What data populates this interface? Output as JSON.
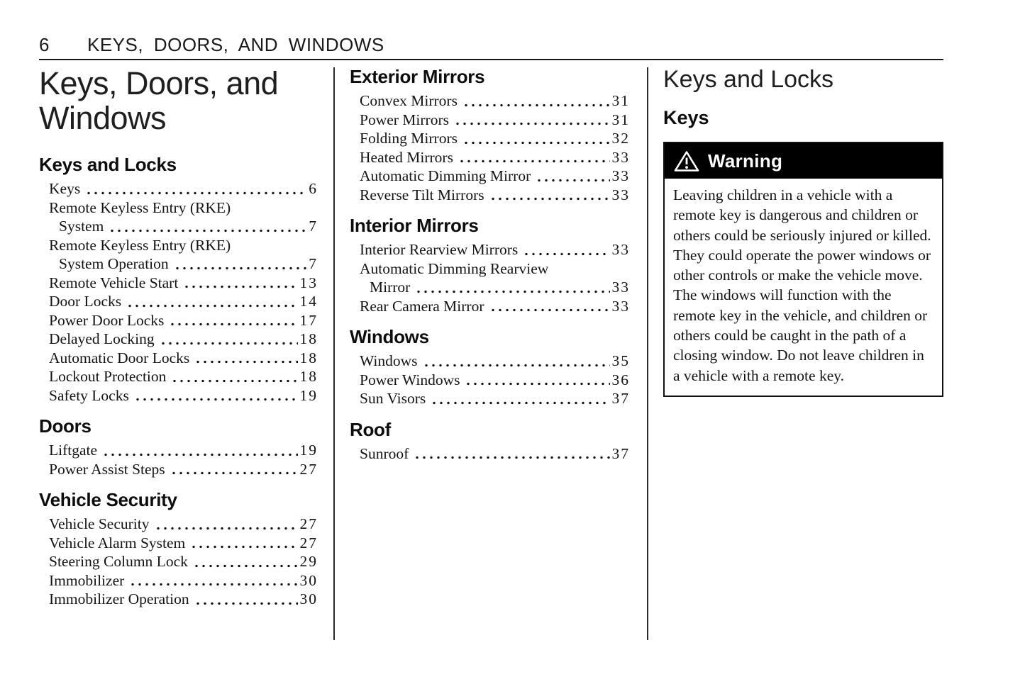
{
  "header": {
    "page_number": "6",
    "title": "KEYS, DOORS, AND WINDOWS"
  },
  "page_title": "Keys, Doors, and Windows",
  "toc": {
    "column1": [
      {
        "heading": "Keys and Locks",
        "entries": [
          {
            "lines": [
              "Keys"
            ],
            "page": "6"
          },
          {
            "lines": [
              "Remote Keyless Entry (RKE)",
              "System"
            ],
            "page": "7"
          },
          {
            "lines": [
              "Remote Keyless Entry (RKE)",
              "System Operation"
            ],
            "page": "7"
          },
          {
            "lines": [
              "Remote Vehicle Start"
            ],
            "page": "13"
          },
          {
            "lines": [
              "Door Locks"
            ],
            "page": "14"
          },
          {
            "lines": [
              "Power Door Locks"
            ],
            "page": "17"
          },
          {
            "lines": [
              "Delayed Locking"
            ],
            "page": "18"
          },
          {
            "lines": [
              "Automatic Door Locks"
            ],
            "page": "18"
          },
          {
            "lines": [
              "Lockout Protection"
            ],
            "page": "18"
          },
          {
            "lines": [
              "Safety Locks"
            ],
            "page": "19"
          }
        ]
      },
      {
        "heading": "Doors",
        "entries": [
          {
            "lines": [
              "Liftgate"
            ],
            "page": "19"
          },
          {
            "lines": [
              "Power Assist Steps"
            ],
            "page": "27"
          }
        ]
      },
      {
        "heading": "Vehicle Security",
        "entries": [
          {
            "lines": [
              "Vehicle Security"
            ],
            "page": "27"
          },
          {
            "lines": [
              "Vehicle Alarm System"
            ],
            "page": "27"
          },
          {
            "lines": [
              "Steering Column Lock"
            ],
            "page": "29"
          },
          {
            "lines": [
              "Immobilizer"
            ],
            "page": "30"
          },
          {
            "lines": [
              "Immobilizer Operation"
            ],
            "page": "30"
          }
        ]
      }
    ],
    "column2": [
      {
        "heading": "Exterior Mirrors",
        "entries": [
          {
            "lines": [
              "Convex Mirrors"
            ],
            "page": "31"
          },
          {
            "lines": [
              "Power Mirrors"
            ],
            "page": "31"
          },
          {
            "lines": [
              "Folding Mirrors"
            ],
            "page": "32"
          },
          {
            "lines": [
              "Heated Mirrors"
            ],
            "page": "33"
          },
          {
            "lines": [
              "Automatic Dimming Mirror"
            ],
            "page": "33"
          },
          {
            "lines": [
              "Reverse Tilt Mirrors"
            ],
            "page": "33"
          }
        ]
      },
      {
        "heading": "Interior Mirrors",
        "entries": [
          {
            "lines": [
              "Interior Rearview Mirrors"
            ],
            "page": "33"
          },
          {
            "lines": [
              "Automatic Dimming Rearview",
              "Mirror"
            ],
            "page": "33"
          },
          {
            "lines": [
              "Rear Camera Mirror"
            ],
            "page": "33"
          }
        ]
      },
      {
        "heading": "Windows",
        "entries": [
          {
            "lines": [
              "Windows"
            ],
            "page": "35"
          },
          {
            "lines": [
              "Power Windows"
            ],
            "page": "36"
          },
          {
            "lines": [
              "Sun Visors"
            ],
            "page": "37"
          }
        ]
      },
      {
        "heading": "Roof",
        "entries": [
          {
            "lines": [
              "Sunroof"
            ],
            "page": "37"
          }
        ]
      }
    ]
  },
  "section": {
    "title": "Keys and Locks",
    "subtitle": "Keys"
  },
  "warning": {
    "icon": "warning-triangle-icon",
    "label": "Warning",
    "text": "Leaving children in a vehicle with a remote key is dangerous and children or others could be seriously injured or killed. They could operate the power windows or other controls or make the vehicle move. The windows will function with the remote key in the vehicle, and children or others could be caught in the path of a closing window. Do not leave children in a vehicle with a remote key.",
    "colors": {
      "header_bg": "#000000",
      "header_text": "#ffffff",
      "border": "#111111"
    }
  },
  "colors": {
    "page_bg": "#ffffff",
    "text": "#141414",
    "rule": "#1a1a1a"
  }
}
